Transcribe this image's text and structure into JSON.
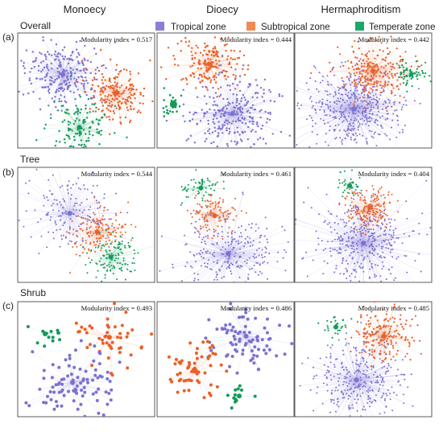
{
  "columns": [
    "Monoecy",
    "Dioecy",
    "Hermaphroditism"
  ],
  "legend": [
    {
      "label": "Tropical zone",
      "color": "#8a7fd6"
    },
    {
      "label": "Subtropical zone",
      "color": "#f08a52"
    },
    {
      "label": "Temperate zone",
      "color": "#1aa868"
    }
  ],
  "colors": {
    "tropical": "#7b72d0",
    "subtropical": "#e8602a",
    "temperate": "#139a5a",
    "border": "#333333"
  },
  "modularity_label": "Modularity index",
  "rows": [
    {
      "letter": "(a)",
      "title": "Overall",
      "panels": [
        {
          "modularity": "0.517"
        },
        {
          "modularity": "0.444"
        },
        {
          "modularity": "0.442"
        }
      ]
    },
    {
      "letter": "(b)",
      "title": "Tree",
      "panels": [
        {
          "modularity": "0.544"
        },
        {
          "modularity": "0.461"
        },
        {
          "modularity": "0.404"
        }
      ]
    },
    {
      "letter": "(c)",
      "title": "Shrub",
      "panels": [
        {
          "modularity": "0.493"
        },
        {
          "modularity": "0.486"
        },
        {
          "modularity": "0.485"
        }
      ]
    }
  ]
}
